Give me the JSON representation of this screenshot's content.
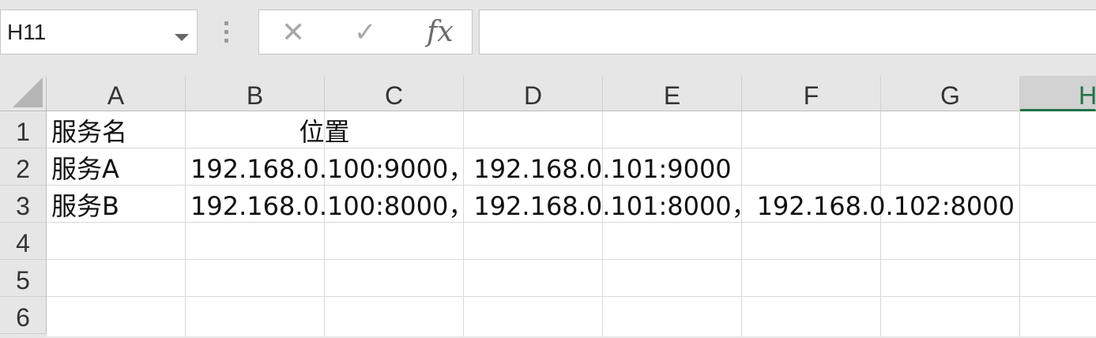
{
  "formula_bar": {
    "name_box": "H11",
    "cancel_glyph": "✕",
    "enter_glyph": "✓",
    "fx_label": "fx",
    "formula_value": ""
  },
  "columns": [
    "A",
    "B",
    "C",
    "D",
    "E",
    "F",
    "G",
    "H"
  ],
  "rows": [
    "1",
    "2",
    "3",
    "4",
    "5",
    "6"
  ],
  "cells": {
    "A1": "服务名",
    "B1": "位置",
    "A2": "服务A",
    "B2": "192.168.0.100:9000，192.168.0.101:9000",
    "A3": "服务B",
    "B3": "192.168.0.100:8000，192.168.0.101:8000，192.168.0.102:8000"
  },
  "icons": {
    "name_box_dropdown": "chevron-down-icon",
    "drag_handle": "vertical-dots-icon",
    "cancel": "close-icon",
    "enter": "check-icon",
    "function": "fx-icon",
    "select_all": "select-all-triangle-icon"
  },
  "colors": {
    "accent": "#217346",
    "header_bg": "#e6e6e6",
    "grid_line": "#d9d9d9"
  }
}
